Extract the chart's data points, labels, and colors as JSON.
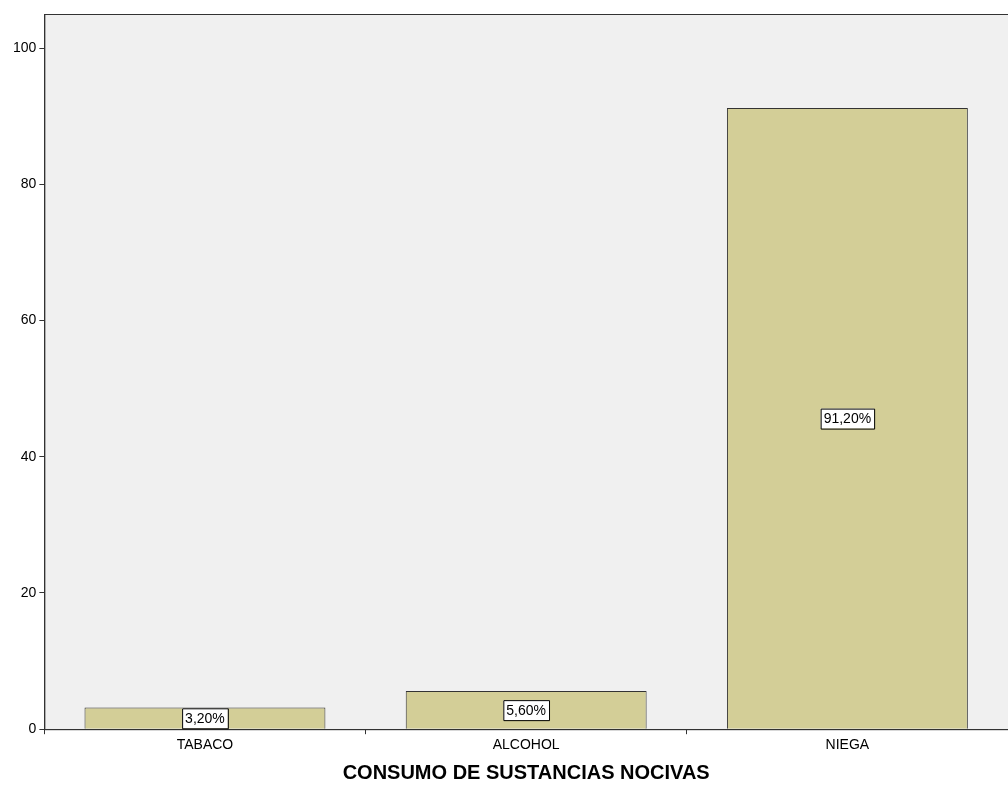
{
  "chart_data": {
    "type": "bar",
    "xlabel": "CONSUMO DE SUSTANCIAS NOCIVAS",
    "categories": [
      "TABACO",
      "ALCOHOL",
      "NIEGA"
    ],
    "values": [
      3.2,
      5.6,
      91.2
    ],
    "value_labels": [
      "3,20%",
      "5,60%",
      "91,20%"
    ],
    "color": "#d3ce97",
    "ylim": [
      0,
      105
    ],
    "yticks": [
      0,
      20,
      40,
      60,
      80,
      100
    ],
    "grid": false,
    "legend": false
  }
}
